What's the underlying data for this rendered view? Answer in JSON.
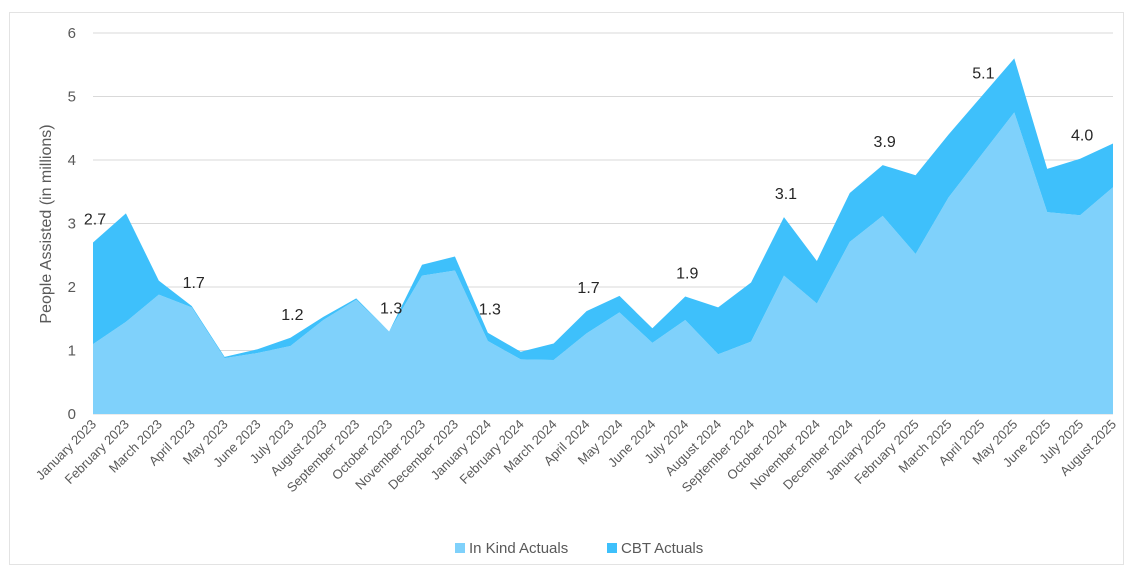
{
  "chart_data": {
    "type": "area",
    "stacked": true,
    "ylabel": "People Assisted (in millions)",
    "ylim": [
      0,
      6
    ],
    "yticks": [
      "0",
      "1",
      "2",
      "3",
      "4",
      "5",
      "6"
    ],
    "grid": true,
    "legend_position": "bottom",
    "categories": [
      "January 2023",
      "February 2023",
      "March 2023",
      "April 2023",
      "May 2023",
      "June 2023",
      "July 2023",
      "August 2023",
      "September 2023",
      "October 2023",
      "November 2023",
      "December 2023",
      "January 2024",
      "February 2024",
      "March 2024",
      "April 2024",
      "May 2024",
      "June 2024",
      "July 2024",
      "August 2024",
      "September 2024",
      "October 2024",
      "November 2024",
      "December 2024",
      "January 2025",
      "February 2025",
      "March 2025",
      "April 2025",
      "May 2025",
      "June 2025",
      "July 2025",
      "August 2025"
    ],
    "series": [
      {
        "name": "In Kind Actuals",
        "color": "#7fd1fb",
        "values": [
          1.1,
          1.45,
          1.88,
          1.68,
          0.88,
          0.96,
          1.07,
          1.48,
          1.8,
          1.3,
          2.18,
          2.26,
          1.15,
          0.86,
          0.85,
          1.27,
          1.6,
          1.12,
          1.48,
          0.94,
          1.14,
          2.18,
          1.74,
          2.71,
          3.12,
          2.52,
          3.41,
          4.08,
          4.75,
          3.18,
          3.13,
          3.57
        ]
      },
      {
        "name": "CBT Actuals",
        "color": "#3ec0fb",
        "values": [
          1.6,
          1.71,
          0.22,
          0.02,
          0.02,
          0.06,
          0.13,
          0.05,
          0.02,
          0.0,
          0.17,
          0.22,
          0.13,
          0.12,
          0.26,
          0.35,
          0.26,
          0.23,
          0.37,
          0.74,
          0.93,
          0.92,
          0.67,
          0.77,
          0.8,
          1.24,
          0.99,
          0.92,
          0.85,
          0.68,
          0.89,
          0.69
        ]
      }
    ],
    "data_labels": [
      {
        "index": 0,
        "text": "2.7"
      },
      {
        "index": 3,
        "text": "1.7"
      },
      {
        "index": 6,
        "text": "1.2"
      },
      {
        "index": 9,
        "text": "1.3"
      },
      {
        "index": 12,
        "text": "1.3"
      },
      {
        "index": 15,
        "text": "1.7"
      },
      {
        "index": 18,
        "text": "1.9"
      },
      {
        "index": 21,
        "text": "3.1"
      },
      {
        "index": 24,
        "text": "3.9"
      },
      {
        "index": 27,
        "text": "5.1"
      },
      {
        "index": 30,
        "text": "4.0"
      }
    ]
  }
}
